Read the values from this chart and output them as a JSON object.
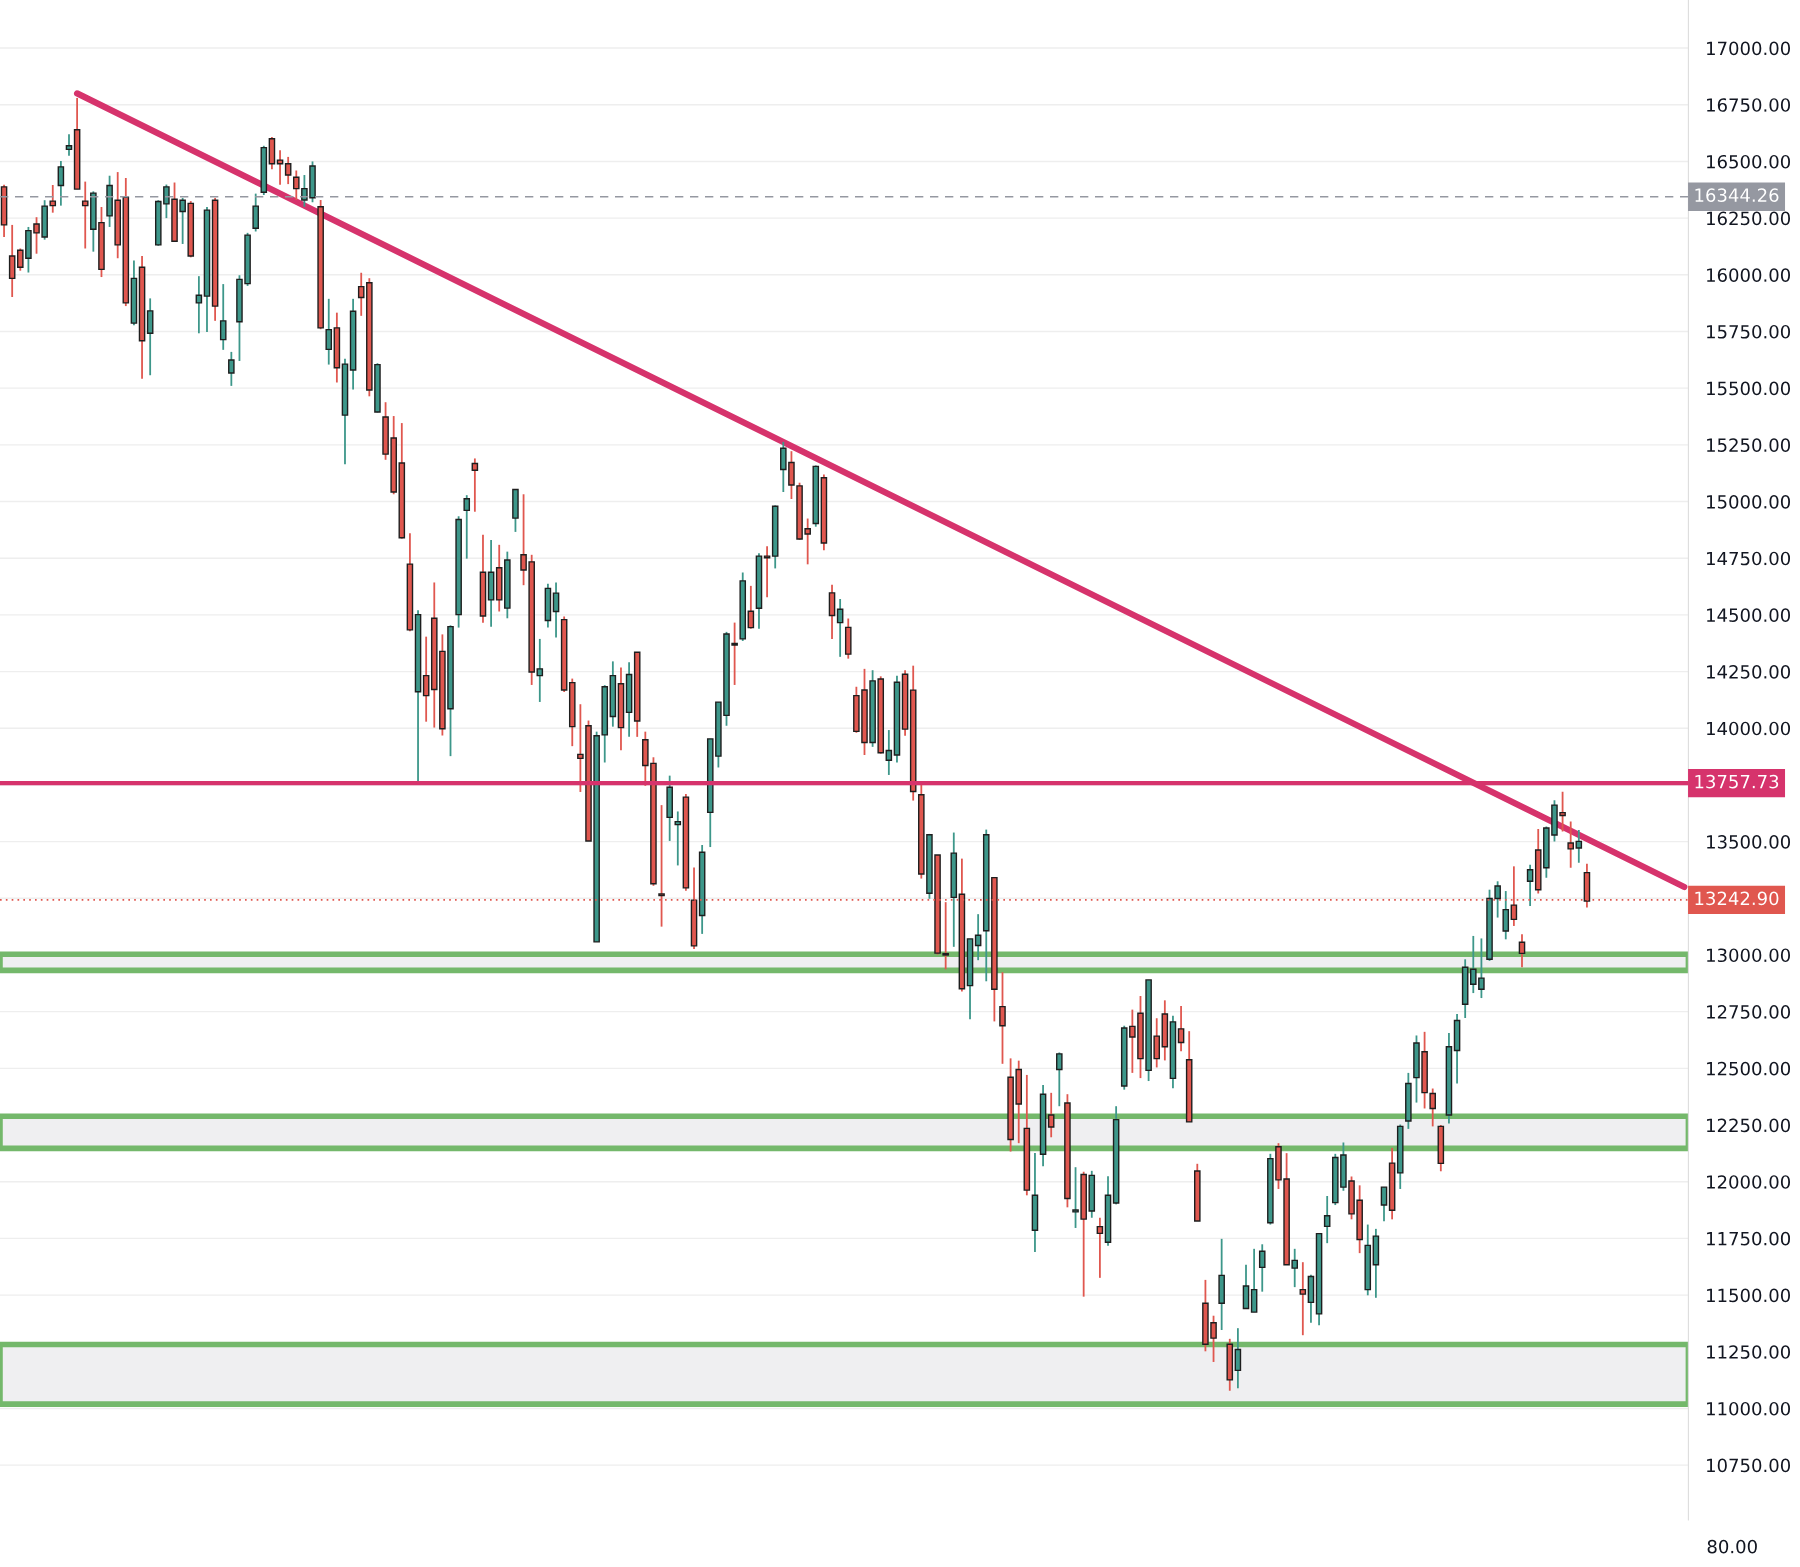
{
  "chart_data": {
    "type": "candlestick",
    "categories": [
      null,
      null,
      null,
      null,
      null,
      null,
      null,
      null,
      null,
      null,
      null,
      null,
      null,
      null,
      null,
      null,
      null,
      null,
      null,
      null,
      null,
      null,
      null,
      null,
      null,
      null,
      null,
      null,
      null,
      null,
      null,
      null,
      null,
      null,
      null,
      null,
      null,
      null,
      null,
      null,
      null,
      null,
      null,
      null,
      null,
      null,
      null,
      null,
      null,
      null,
      null,
      null,
      null,
      null,
      null,
      null,
      null,
      null,
      null,
      null,
      null,
      null,
      null,
      null,
      null,
      null,
      null,
      null,
      null,
      null,
      null,
      null,
      null,
      null,
      null,
      null,
      null,
      null,
      null,
      null,
      null,
      null,
      null,
      null,
      null,
      null,
      null,
      null,
      null,
      null,
      null,
      null,
      null,
      null,
      null,
      null,
      null,
      null,
      null,
      null,
      null,
      null,
      null,
      null,
      null,
      null,
      null,
      null,
      null,
      null,
      null,
      null,
      null,
      null,
      null,
      null,
      null,
      null,
      null,
      null,
      null,
      null,
      null,
      null,
      null,
      null,
      null,
      null,
      null,
      null,
      null,
      null,
      null,
      null,
      null,
      null,
      null,
      null,
      null,
      null,
      null,
      null,
      null,
      null,
      null,
      null,
      null,
      null,
      null,
      null,
      null,
      null,
      null,
      null,
      null,
      null,
      null,
      null,
      null,
      null,
      null,
      null,
      null,
      null,
      null,
      null,
      null,
      null,
      null,
      null,
      null,
      null,
      null,
      null,
      null,
      null,
      null,
      null,
      null,
      null,
      null,
      null,
      null,
      null,
      null,
      null,
      null,
      null,
      null,
      null,
      null,
      null,
      null,
      null,
      null,
      null,
      null,
      null,
      null,
      null,
      null,
      null,
      null,
      null,
      null,
      null,
      null,
      null
    ],
    "ohlc": [
      [
        16388,
        16397,
        16167,
        16220
      ],
      [
        16083,
        16220,
        15902,
        15984
      ],
      [
        16108,
        16116,
        16018,
        16033
      ],
      [
        16073,
        16211,
        16010,
        16195
      ],
      [
        16224,
        16254,
        16093,
        16185
      ],
      [
        16167,
        16329,
        16155,
        16303
      ],
      [
        16325,
        16396,
        16274,
        16305
      ],
      [
        16394,
        16502,
        16305,
        16476
      ],
      [
        16553,
        16620,
        16525,
        16569
      ],
      [
        16640,
        16780,
        16378,
        16378
      ],
      [
        16325,
        16411,
        16116,
        16305
      ],
      [
        16201,
        16368,
        16102,
        16360
      ],
      [
        16230,
        16299,
        15990,
        16024
      ],
      [
        16260,
        16437,
        16211,
        16394
      ],
      [
        16329,
        16453,
        16073,
        16132
      ],
      [
        16342,
        16427,
        15862,
        15876
      ],
      [
        15787,
        16063,
        15778,
        15984
      ],
      [
        16033,
        16083,
        15541,
        15709
      ],
      [
        15742,
        15896,
        15557,
        15841
      ],
      [
        16132,
        16329,
        16128,
        16323
      ],
      [
        16313,
        16398,
        16250,
        16388
      ],
      [
        16333,
        16407,
        16148,
        16148
      ],
      [
        16279,
        16339,
        16136,
        16329
      ],
      [
        16315,
        16325,
        16077,
        16083
      ],
      [
        15876,
        15994,
        15742,
        15910
      ],
      [
        15906,
        16299,
        15748,
        16285
      ],
      [
        16329,
        16339,
        15797,
        15862
      ],
      [
        15714,
        15959,
        15669,
        15797
      ],
      [
        15567,
        15660,
        15510,
        15624
      ],
      [
        15793,
        15998,
        15620,
        15980
      ],
      [
        15961,
        16185,
        15951,
        16175
      ],
      [
        16205,
        16358,
        16191,
        16303
      ],
      [
        16364,
        16569,
        16352,
        16561
      ],
      [
        16600,
        16608,
        16466,
        16490
      ],
      [
        16506,
        16549,
        16397,
        16490
      ],
      [
        16490,
        16520,
        16400,
        16440
      ],
      [
        16430,
        16460,
        16330,
        16380
      ],
      [
        16330,
        16440,
        16300,
        16380
      ],
      [
        16340,
        16500,
        16320,
        16480
      ],
      [
        16300,
        16330,
        15760,
        15766
      ],
      [
        15671,
        15894,
        15604,
        15758
      ],
      [
        15766,
        15833,
        15525,
        15590
      ],
      [
        15381,
        15630,
        15164,
        15606
      ],
      [
        15580,
        15894,
        15494,
        15839
      ],
      [
        15948,
        16009,
        15819,
        15900
      ],
      [
        15965,
        15985,
        15464,
        15492
      ],
      [
        15395,
        15610,
        15393,
        15604
      ],
      [
        15373,
        15438,
        15184,
        15209
      ],
      [
        15280,
        15377,
        15032,
        15042
      ],
      [
        15170,
        15346,
        14836,
        14840
      ],
      [
        14724,
        14860,
        14428,
        14434
      ],
      [
        14161,
        14521,
        13760,
        14501
      ],
      [
        14232,
        14404,
        14029,
        14144
      ],
      [
        14485,
        14643,
        14003,
        14171
      ],
      [
        14339,
        14414,
        13968,
        13998
      ],
      [
        14086,
        14454,
        13877,
        14448
      ],
      [
        14501,
        14935,
        14444,
        14921
      ],
      [
        14961,
        15028,
        14748,
        15012
      ],
      [
        15168,
        15190,
        14955,
        15138
      ],
      [
        14688,
        14854,
        14465,
        14495
      ],
      [
        14566,
        14830,
        14448,
        14688
      ],
      [
        14708,
        14809,
        14515,
        14566
      ],
      [
        14530,
        14779,
        14485,
        14742
      ],
      [
        14927,
        15053,
        14866,
        15053
      ],
      [
        14765,
        15032,
        14631,
        14698
      ],
      [
        14734,
        14765,
        14191,
        14248
      ],
      [
        14232,
        14394,
        14116,
        14262
      ],
      [
        14475,
        14637,
        14444,
        14617
      ],
      [
        14515,
        14643,
        14400,
        14596
      ],
      [
        14479,
        14493,
        14160,
        14169
      ],
      [
        14201,
        14219,
        13921,
        14007
      ],
      [
        13885,
        14106,
        13719,
        13867
      ],
      [
        14011,
        14034,
        13503,
        13503
      ],
      [
        13058,
        13985,
        13058,
        13967
      ],
      [
        13971,
        14190,
        13849,
        14183
      ],
      [
        14052,
        14295,
        14007,
        14232
      ],
      [
        14196,
        14268,
        13903,
        14003
      ],
      [
        14070,
        14291,
        13962,
        14237
      ],
      [
        14335,
        14335,
        13962,
        14032
      ],
      [
        13949,
        13985,
        13746,
        13836
      ],
      [
        13845,
        13872,
        13305,
        13314
      ],
      [
        13269,
        13661,
        13125,
        13262
      ],
      [
        13607,
        13791,
        13503,
        13740
      ],
      [
        13575,
        13633,
        13395,
        13588
      ],
      [
        13696,
        13710,
        13283,
        13296
      ],
      [
        13242,
        13386,
        13026,
        13040
      ],
      [
        13174,
        13485,
        13093,
        13453
      ],
      [
        13629,
        13953,
        13476,
        13953
      ],
      [
        13877,
        14115,
        13827,
        14115
      ],
      [
        14057,
        14425,
        14011,
        14416
      ],
      [
        14374,
        14466,
        14191,
        14367
      ],
      [
        14394,
        14687,
        14385,
        14650
      ],
      [
        14516,
        14628,
        14439,
        14444
      ],
      [
        14529,
        14772,
        14439,
        14759
      ],
      [
        14759,
        14803,
        14578,
        14752
      ],
      [
        14759,
        14983,
        14705,
        14979
      ],
      [
        15141,
        15263,
        15042,
        15235
      ],
      [
        15172,
        15222,
        15011,
        15073
      ],
      [
        15069,
        15083,
        14831,
        14835
      ],
      [
        14880,
        14925,
        14723,
        14857
      ],
      [
        14903,
        15159,
        14889,
        15155
      ],
      [
        15105,
        15119,
        14785,
        14817
      ],
      [
        14597,
        14633,
        14394,
        14497
      ],
      [
        14466,
        14570,
        14315,
        14525
      ],
      [
        14445,
        14484,
        14307,
        14327
      ],
      [
        14144,
        14183,
        13980,
        13986
      ],
      [
        14169,
        14262,
        13882,
        13937
      ],
      [
        13937,
        14256,
        13918,
        14209
      ],
      [
        14217,
        14229,
        13888,
        13892
      ],
      [
        13859,
        13992,
        13794,
        13902
      ],
      [
        13882,
        14232,
        13849,
        14203
      ],
      [
        14238,
        14256,
        13967,
        13996
      ],
      [
        14168,
        14276,
        13681,
        13721
      ],
      [
        13707,
        13760,
        13337,
        13357
      ],
      [
        13272,
        13534,
        13248,
        13530
      ],
      [
        13441,
        13441,
        13002,
        13008
      ],
      [
        13006,
        13233,
        12937,
        13000
      ],
      [
        13254,
        13540,
        13036,
        13449
      ],
      [
        13268,
        13425,
        12839,
        12851
      ],
      [
        12865,
        13071,
        12717,
        13071
      ],
      [
        13042,
        13180,
        12977,
        13087
      ],
      [
        13107,
        13553,
        12884,
        13530
      ],
      [
        13341,
        13341,
        12707,
        12849
      ],
      [
        12772,
        12924,
        12520,
        12688
      ],
      [
        12461,
        12544,
        12133,
        12186
      ],
      [
        12495,
        12534,
        12170,
        12343
      ],
      [
        12235,
        12471,
        11940,
        11963
      ],
      [
        11786,
        12127,
        11690,
        11940
      ],
      [
        12121,
        12426,
        12068,
        12386
      ],
      [
        12294,
        12392,
        12196,
        12241
      ],
      [
        12495,
        12570,
        12333,
        12564
      ],
      [
        12347,
        12386,
        11887,
        11926
      ],
      [
        11867,
        12064,
        11796,
        11875
      ],
      [
        12032,
        12044,
        11493,
        11835
      ],
      [
        11871,
        12048,
        11841,
        12028
      ],
      [
        11802,
        11841,
        11576,
        11772
      ],
      [
        11733,
        12024,
        11717,
        11940
      ],
      [
        11906,
        12333,
        11900,
        12274
      ],
      [
        12422,
        12688,
        12406,
        12678
      ],
      [
        12685,
        12759,
        12480,
        12638
      ],
      [
        12743,
        12819,
        12457,
        12543
      ],
      [
        12491,
        12890,
        12444,
        12890
      ],
      [
        12642,
        12721,
        12504,
        12543
      ],
      [
        12740,
        12800,
        12535,
        12595
      ],
      [
        12456,
        12732,
        12412,
        12705
      ],
      [
        12674,
        12775,
        12575,
        12614
      ],
      [
        12538,
        12664,
        12264,
        12264
      ],
      [
        12047,
        12079,
        11827,
        11827
      ],
      [
        11464,
        11567,
        11252,
        11283
      ],
      [
        11378,
        11409,
        11205,
        11310
      ],
      [
        11464,
        11748,
        11346,
        11587
      ],
      [
        11283,
        11307,
        11078,
        11126
      ],
      [
        11168,
        11354,
        11089,
        11260
      ],
      [
        11441,
        11634,
        11441,
        11540
      ],
      [
        11425,
        11704,
        11425,
        11524
      ],
      [
        11622,
        11724,
        11515,
        11693
      ],
      [
        11819,
        12123,
        11811,
        12102
      ],
      [
        12154,
        12170,
        11968,
        12008
      ],
      [
        12012,
        12126,
        11634,
        11634
      ],
      [
        11619,
        11704,
        11535,
        11653
      ],
      [
        11524,
        11645,
        11323,
        11504
      ],
      [
        11468,
        11590,
        11378,
        11582
      ],
      [
        11417,
        11771,
        11367,
        11771
      ],
      [
        11803,
        11937,
        11729,
        11850
      ],
      [
        11908,
        12123,
        11897,
        12107
      ],
      [
        11976,
        12173,
        11960,
        12118
      ],
      [
        12003,
        12023,
        11834,
        11858
      ],
      [
        11918,
        11984,
        11685,
        11745
      ],
      [
        11524,
        11811,
        11499,
        11719
      ],
      [
        11634,
        11792,
        11488,
        11760
      ],
      [
        11897,
        11976,
        11826,
        11976
      ],
      [
        12082,
        12149,
        11834,
        11874
      ],
      [
        12039,
        12252,
        11968,
        12244
      ],
      [
        12268,
        12480,
        12233,
        12433
      ],
      [
        12459,
        12645,
        12349,
        12612
      ],
      [
        12573,
        12661,
        12323,
        12393
      ],
      [
        12389,
        12411,
        12244,
        12323
      ],
      [
        12244,
        12250,
        12046,
        12081
      ],
      [
        12294,
        12656,
        12257,
        12595
      ],
      [
        12579,
        12740,
        12433,
        12711
      ],
      [
        12783,
        12981,
        12722,
        12946
      ],
      [
        12871,
        13084,
        12832,
        12937
      ],
      [
        12849,
        13073,
        12810,
        12898
      ],
      [
        12981,
        13288,
        12974,
        13249
      ],
      [
        13249,
        13325,
        13165,
        13304
      ],
      [
        13106,
        13282,
        13069,
        13200
      ],
      [
        13220,
        13391,
        13128,
        13157
      ],
      [
        13056,
        13091,
        12946,
        13007
      ],
      [
        13325,
        13398,
        13216,
        13376
      ],
      [
        13463,
        13556,
        13271,
        13288
      ],
      [
        13385,
        13567,
        13341,
        13560
      ],
      [
        13529,
        13683,
        13501,
        13661
      ],
      [
        13628,
        13720,
        13545,
        13615
      ],
      [
        13494,
        13589,
        13385,
        13468
      ],
      [
        13472,
        13551,
        13407,
        13501
      ],
      [
        13363,
        13402,
        13209,
        13238
      ],
      null,
      null,
      null,
      null,
      null,
      null,
      null,
      null,
      null,
      null,
      null,
      null
    ],
    "series": [
      {
        "type": "line",
        "color": "#d6336c",
        "values": [
          null,
          null,
          null,
          null,
          null,
          null,
          null,
          null,
          null,
          16800,
          null,
          null,
          null,
          null,
          null,
          null,
          null,
          null,
          null,
          null,
          null,
          null,
          null,
          null,
          null,
          null,
          null,
          null,
          null,
          null,
          null,
          null,
          null,
          null,
          null,
          null,
          null,
          null,
          null,
          null,
          null,
          null,
          null,
          null,
          null,
          null,
          null,
          null,
          null,
          null,
          null,
          null,
          null,
          null,
          null,
          null,
          null,
          null,
          null,
          null,
          null,
          null,
          null,
          null,
          null,
          null,
          null,
          null,
          null,
          null,
          null,
          null,
          null,
          null,
          null,
          null,
          null,
          null,
          null,
          null,
          null,
          null,
          null,
          null,
          null,
          null,
          null,
          null,
          null,
          null,
          null,
          null,
          null,
          null,
          null,
          null,
          null,
          null,
          null,
          null,
          null,
          null,
          null,
          null,
          null,
          null,
          null,
          null,
          null,
          null,
          null,
          null,
          null,
          null,
          null,
          null,
          null,
          null,
          null,
          null,
          null,
          null,
          null,
          null,
          null,
          null,
          null,
          null,
          null,
          null,
          null,
          null,
          null,
          null,
          null,
          null,
          null,
          null,
          null,
          null,
          null,
          null,
          null,
          null,
          null,
          null,
          null,
          null,
          null,
          null,
          null,
          null,
          null,
          null,
          null,
          null,
          null,
          null,
          null,
          null,
          null,
          null,
          null,
          null,
          null,
          null,
          null,
          null,
          null,
          null,
          null,
          null,
          null,
          null,
          null,
          null,
          null,
          null,
          null,
          null,
          null,
          null,
          null,
          null,
          null,
          null,
          null,
          null,
          null,
          null,
          null,
          null,
          null,
          null,
          null,
          null,
          null,
          null,
          null,
          null,
          null,
          null,
          null,
          null,
          null,
          null,
          null,
          13300
        ]
      }
    ],
    "ylim": [
      10508,
      17212
    ],
    "yticks": [
      {
        "value": 10750,
        "label": "10750.00"
      },
      {
        "value": 11000,
        "label": "11000.00"
      },
      {
        "value": 11250,
        "label": "11250.00"
      },
      {
        "value": 11500,
        "label": "11500.00"
      },
      {
        "value": 11750,
        "label": "11750.00"
      },
      {
        "value": 12000,
        "label": "12000.00"
      },
      {
        "value": 12250,
        "label": "12250.00"
      },
      {
        "value": 12500,
        "label": "12500.00"
      },
      {
        "value": 12750,
        "label": "12750.00"
      },
      {
        "value": 13000,
        "label": "13000.00"
      },
      {
        "value": 13250,
        "label": null
      },
      {
        "value": 13500,
        "label": "13500.00"
      },
      {
        "value": 13750,
        "label": null
      },
      {
        "value": 14000,
        "label": "14000.00"
      },
      {
        "value": 14250,
        "label": "14250.00"
      },
      {
        "value": 14500,
        "label": "14500.00"
      },
      {
        "value": 14750,
        "label": "14750.00"
      },
      {
        "value": 15000,
        "label": "15000.00"
      },
      {
        "value": 15250,
        "label": "15250.00"
      },
      {
        "value": 15500,
        "label": "15500.00"
      },
      {
        "value": 15750,
        "label": "15750.00"
      },
      {
        "value": 16000,
        "label": "16000.00"
      },
      {
        "value": 16250,
        "label": "16250.00"
      },
      {
        "value": 16500,
        "label": "16500.00"
      },
      {
        "value": 16750,
        "label": "16750.00"
      },
      {
        "value": 17000,
        "label": "17000.00"
      }
    ],
    "ref_lines": [
      {
        "axis": "y",
        "value": 16344.26,
        "label": "16344.26",
        "color": "#9598a1",
        "line_style": "dashed"
      },
      {
        "axis": "y",
        "value": 13757.73,
        "label": "13757.73",
        "color": "#d6336c",
        "line_style": "solid"
      },
      {
        "axis": "y",
        "value": 13242.9,
        "label": "13242.90",
        "color": "#e0574f",
        "line_style": "dotted"
      }
    ],
    "bands": [
      {
        "axis": "y",
        "from": 12932,
        "to": 13003,
        "color": "#74b86b"
      },
      {
        "axis": "y",
        "from": 12147,
        "to": 12289,
        "color": "#74b86b"
      },
      {
        "axis": "y",
        "from": 11019,
        "to": 11282,
        "color": "#74b86b"
      }
    ],
    "annotations": [
      "80.00"
    ],
    "grid": "y"
  }
}
